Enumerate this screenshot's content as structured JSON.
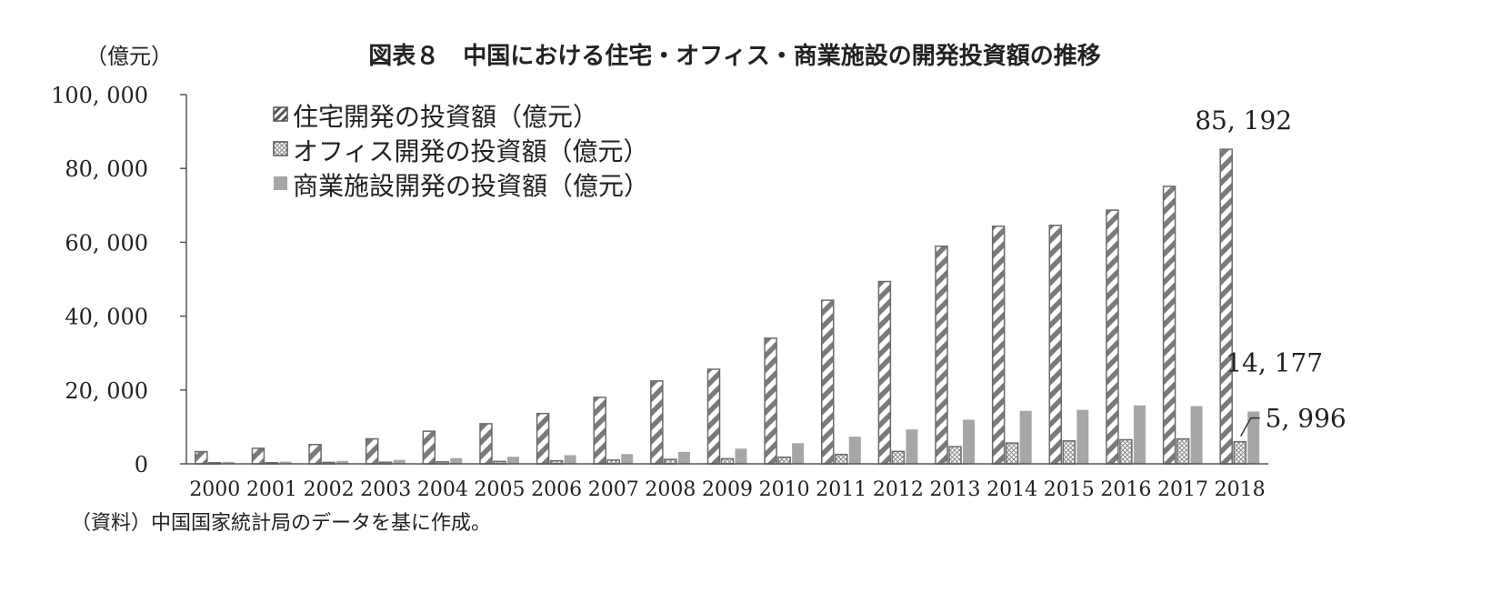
{
  "chart_data": {
    "type": "bar",
    "title": "図表８　中国における住宅・オフィス・商業施設の開発投資額の推移",
    "ylabel": "（億元）",
    "xlabel": "",
    "source": "（資料）中国国家統計局のデータを基に作成。",
    "ylim": [
      0,
      100000
    ],
    "yticks": [
      0,
      20000,
      40000,
      60000,
      80000,
      100000
    ],
    "ytick_labels": [
      "0",
      "20, 000",
      "40, 000",
      "60, 000",
      "80, 000",
      "100, 000"
    ],
    "grid": false,
    "legend_position": "top-left",
    "categories": [
      "2000",
      "2001",
      "2002",
      "2003",
      "2004",
      "2005",
      "2006",
      "2007",
      "2008",
      "2009",
      "2010",
      "2011",
      "2012",
      "2013",
      "2014",
      "2015",
      "2016",
      "2017",
      "2018"
    ],
    "series": [
      {
        "name": "住宅開発の投資額（億元）",
        "pattern": "diagonal-stripes",
        "color": "#7a7a7a",
        "values": [
          3312,
          4217,
          5228,
          6777,
          8837,
          10861,
          13638,
          18010,
          22441,
          25614,
          34026,
          44308,
          49374,
          58951,
          64352,
          64595,
          68704,
          75148,
          85192
        ]
      },
      {
        "name": "オフィス開発の投資額（億元）",
        "pattern": "crosshatch",
        "color": "#8a8a8a",
        "values": [
          300,
          310,
          390,
          440,
          540,
          650,
          820,
          1020,
          1210,
          1380,
          1810,
          2540,
          3370,
          4650,
          5640,
          6210,
          6530,
          6760,
          5996
        ]
      },
      {
        "name": "商業施設開発の投資額（億元）",
        "pattern": "solid",
        "color": "#a6a6a6",
        "values": [
          530,
          600,
          790,
          1070,
          1550,
          1920,
          2350,
          2640,
          3240,
          4120,
          5600,
          7370,
          9310,
          11950,
          14350,
          14610,
          15840,
          15640,
          14177
        ]
      }
    ],
    "annotations": [
      {
        "text": "85, 192",
        "category": "2018",
        "series": 0
      },
      {
        "text": "14, 177",
        "category": "2018",
        "series": 2
      },
      {
        "text": "5, 996",
        "category": "2018",
        "series": 1
      }
    ]
  }
}
